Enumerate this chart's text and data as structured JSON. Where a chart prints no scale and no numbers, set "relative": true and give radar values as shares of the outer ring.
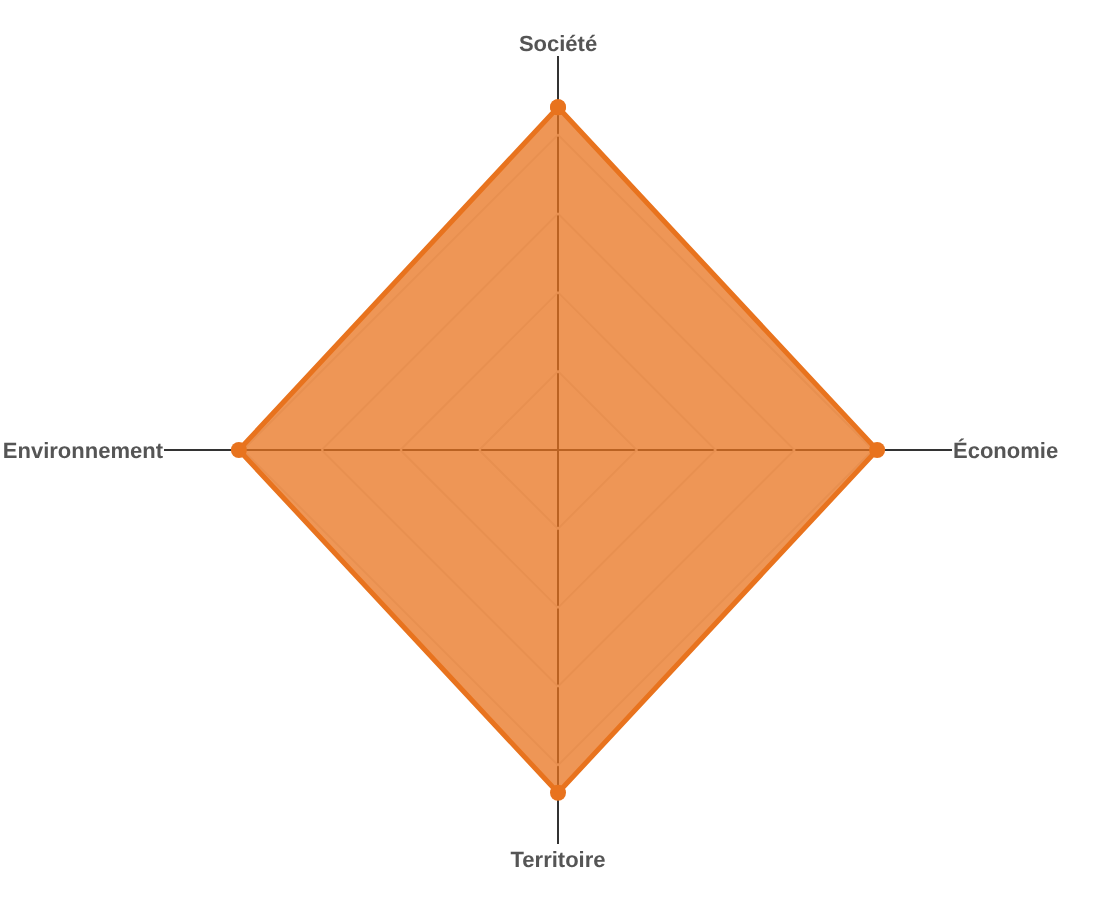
{
  "chart_data": {
    "type": "radar",
    "relative": true,
    "categories": [
      "Société",
      "Économie",
      "Territoire",
      "Environnement"
    ],
    "series": [
      {
        "color": "#e8731e",
        "values": [
          0.87,
          0.81,
          0.87,
          0.81
        ]
      }
    ],
    "marker": "circle",
    "grid": true
  }
}
